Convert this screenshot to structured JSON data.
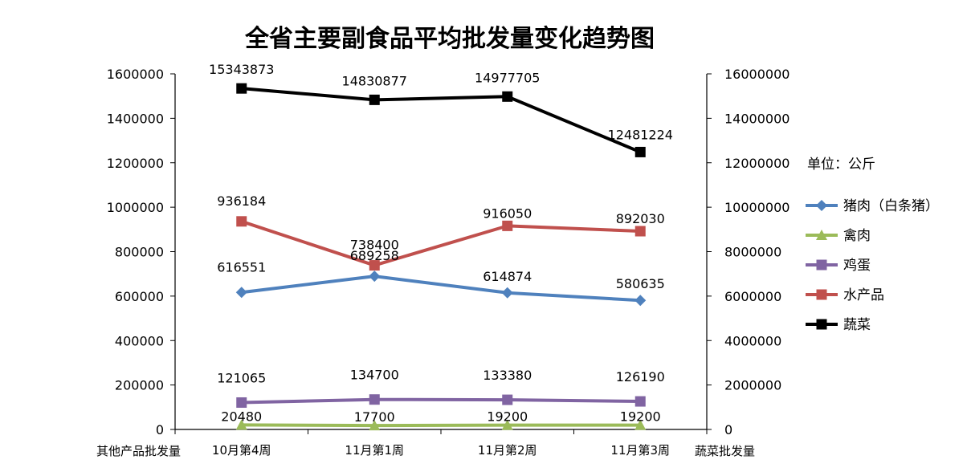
{
  "chart_data": {
    "type": "line",
    "title": "全省主要副食品平均批发量变化趋势图",
    "unit_label": "单位：公斤",
    "ylabel_left": "其他产品批发量",
    "ylabel_right": "蔬菜批发量",
    "categories": [
      "10月第4周",
      "11月第1周",
      "11月第2周",
      "11月第3周"
    ],
    "ylim_left": [
      0,
      1600000
    ],
    "yticks_left": [
      "0",
      "200000",
      "400000",
      "600000",
      "800000",
      "1000000",
      "1200000",
      "1400000",
      "1600000"
    ],
    "ylim_right": [
      0,
      16000000
    ],
    "yticks_right": [
      "0",
      "2000000",
      "4000000",
      "6000000",
      "8000000",
      "10000000",
      "12000000",
      "14000000",
      "16000000"
    ],
    "grid": false,
    "legend_position": "right",
    "series": [
      {
        "name": "猪肉（白条猪）",
        "axis": "left",
        "color": "#4F81BD",
        "marker": "diamond",
        "values": [
          616551,
          689258,
          614874,
          580635
        ],
        "labels": [
          "616551",
          "689258",
          "614874",
          "580635"
        ]
      },
      {
        "name": "禽肉",
        "axis": "left",
        "color": "#9BBB59",
        "marker": "triangle",
        "values": [
          20480,
          17700,
          19200,
          19200
        ],
        "labels": [
          "20480",
          "17700",
          "19200",
          "19200"
        ]
      },
      {
        "name": "鸡蛋",
        "axis": "left",
        "color": "#8064A2",
        "marker": "square",
        "values": [
          121065,
          134700,
          133380,
          126190
        ],
        "labels": [
          "121065",
          "134700",
          "133380",
          "126190"
        ]
      },
      {
        "name": "水产品",
        "axis": "left",
        "color": "#C0504D",
        "marker": "square",
        "values": [
          936184,
          738400,
          916050,
          892030
        ],
        "labels": [
          "936184",
          "738400",
          "916050",
          "892030"
        ]
      },
      {
        "name": "蔬菜",
        "axis": "right",
        "color": "#000000",
        "marker": "square",
        "values": [
          15343873,
          14830877,
          14977705,
          12481224
        ],
        "labels": [
          "15343873",
          "14830877",
          "14977705",
          "12481224"
        ]
      }
    ]
  }
}
